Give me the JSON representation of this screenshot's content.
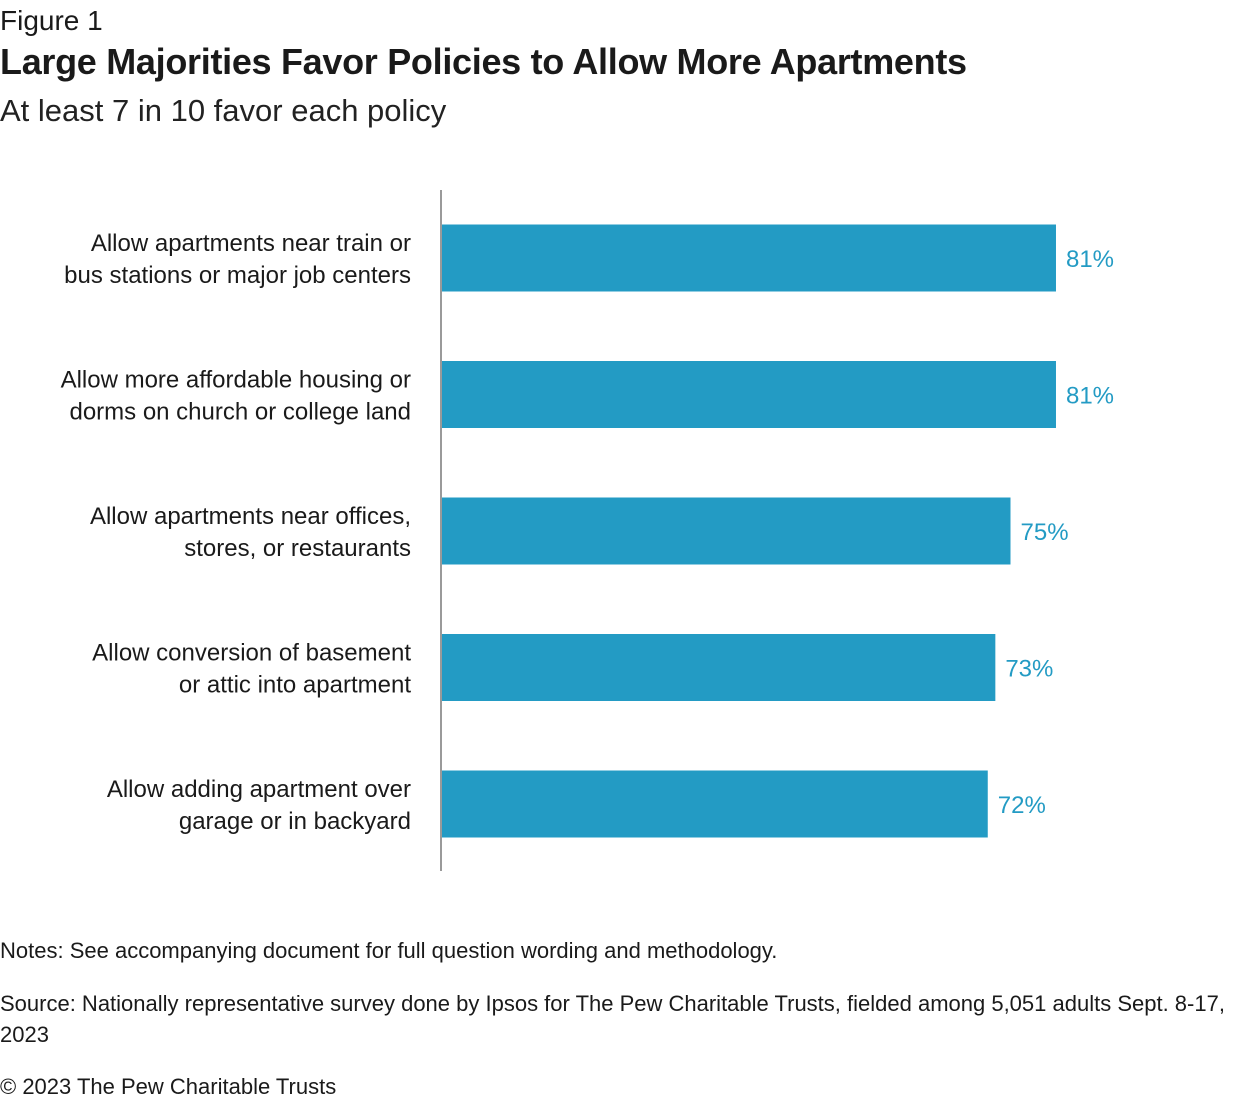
{
  "figure_label": "Figure 1",
  "title": "Large Majorities Favor Policies to Allow More Apartments",
  "subtitle": "At least 7 in 10 favor each policy",
  "notes": "Notes: See accompanying document for full question wording and methodology.",
  "source": "Source: Nationally representative survey done by Ipsos for The Pew Charitable Trusts, fielded among 5,051 adults Sept. 8-17, 2023",
  "copyright": "© 2023 The Pew Charitable Trusts",
  "colors": {
    "bar": "#239bc4",
    "value_label": "#239bc4",
    "axis": "#9a9a9a"
  },
  "chart_data": {
    "type": "bar",
    "orientation": "horizontal",
    "title": "Large Majorities Favor Policies to Allow More Apartments",
    "subtitle": "At least 7 in 10 favor each policy",
    "xlabel": "",
    "ylabel": "",
    "xlim": [
      0,
      100
    ],
    "grid": false,
    "categories": [
      [
        "Allow apartments near train or",
        "bus stations or major job centers"
      ],
      [
        "Allow more affordable housing or",
        "dorms on church or college land"
      ],
      [
        "Allow apartments near offices,",
        "stores, or restaurants"
      ],
      [
        "Allow conversion of basement",
        "or attic into apartment"
      ],
      [
        "Allow adding apartment over",
        "garage or in backyard"
      ]
    ],
    "values": [
      81,
      81,
      75,
      73,
      72
    ],
    "value_labels": [
      "81%",
      "81%",
      "75%",
      "73%",
      "72%"
    ]
  }
}
